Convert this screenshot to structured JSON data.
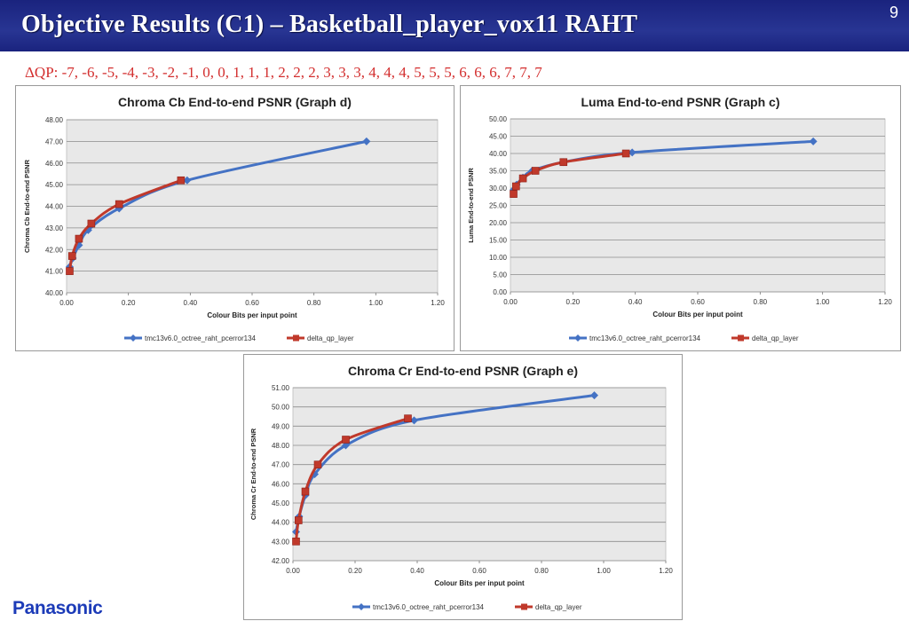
{
  "slide": {
    "title": "Objective Results (C1) – Basketball_player_vox11 RAHT",
    "page_number": "9",
    "dqp": "ΔQP: -7, -6, -5, -4, -3, -2, -1, 0, 0, 1, 1, 1, 2, 2, 2, 3, 3, 3, 4, 4, 4, 5, 5, 5, 6, 6, 6, 7, 7, 7",
    "logo": "Panasonic"
  },
  "colors": {
    "title_bar": "#1a237e",
    "series_1": "#4472c4",
    "series_2": "#c0392b",
    "dqp_text": "#d32f2f",
    "plot_bg": "#e8e8e8"
  },
  "chart_data": [
    {
      "type": "line",
      "title": "Chroma Cb End-to-end PSNR (Graph d)",
      "xlabel": "Colour  Bits per input point",
      "ylabel": "Chroma Cb End-to-end PSNR",
      "xlim": [
        0,
        1.2
      ],
      "ylim": [
        40,
        48
      ],
      "xticks": [
        "0.00",
        "0.20",
        "0.40",
        "0.60",
        "0.80",
        "1.00",
        "1.20"
      ],
      "yticks": [
        "40.00",
        "41.00",
        "42.00",
        "43.00",
        "44.00",
        "45.00",
        "46.00",
        "47.00",
        "48.00"
      ],
      "grid": true,
      "legend": "bottom",
      "series": [
        {
          "name": "tmc13v6.0_octree_raht_pcerror134",
          "marker": "diamond",
          "x": [
            0.01,
            0.02,
            0.04,
            0.07,
            0.17,
            0.39,
            0.97
          ],
          "y": [
            41.2,
            41.6,
            42.2,
            42.9,
            43.9,
            45.2,
            47.0
          ]
        },
        {
          "name": "delta_qp_layer",
          "marker": "square",
          "x": [
            0.01,
            0.018,
            0.04,
            0.08,
            0.17,
            0.37
          ],
          "y": [
            41.0,
            41.7,
            42.5,
            43.2,
            44.1,
            45.2
          ]
        }
      ]
    },
    {
      "type": "line",
      "title": "Luma End-to-end PSNR (Graph c)",
      "xlabel": "Colour  Bits per input point",
      "ylabel": "Luma End-to-end PSNR",
      "xlim": [
        0,
        1.2
      ],
      "ylim": [
        0,
        50
      ],
      "xticks": [
        "0.00",
        "0.20",
        "0.40",
        "0.60",
        "0.80",
        "1.00",
        "1.20"
      ],
      "yticks": [
        "0.00",
        "5.00",
        "10.00",
        "15.00",
        "20.00",
        "25.00",
        "30.00",
        "35.00",
        "40.00",
        "45.00",
        "50.00"
      ],
      "grid": true,
      "legend": "bottom",
      "series": [
        {
          "name": "tmc13v6.0_octree_raht_pcerror134",
          "marker": "diamond",
          "x": [
            0.01,
            0.02,
            0.04,
            0.07,
            0.17,
            0.39,
            0.97
          ],
          "y": [
            29.5,
            31.0,
            33.0,
            35.0,
            37.5,
            40.3,
            43.5
          ]
        },
        {
          "name": "delta_qp_layer",
          "marker": "square",
          "x": [
            0.01,
            0.018,
            0.04,
            0.08,
            0.17,
            0.37
          ],
          "y": [
            28.3,
            30.5,
            32.8,
            35.0,
            37.5,
            40.0
          ]
        }
      ]
    },
    {
      "type": "line",
      "title": "Chroma Cr End-to-end PSNR (Graph e)",
      "xlabel": "Colour  Bits per input point",
      "ylabel": "Chroma Cr End-to-end PSNR",
      "xlim": [
        0,
        1.2
      ],
      "ylim": [
        42,
        51
      ],
      "xticks": [
        "0.00",
        "0.20",
        "0.40",
        "0.60",
        "0.80",
        "1.00",
        "1.20"
      ],
      "yticks": [
        "42.00",
        "43.00",
        "44.00",
        "45.00",
        "46.00",
        "47.00",
        "48.00",
        "49.00",
        "50.00",
        "51.00"
      ],
      "grid": true,
      "legend": "bottom",
      "series": [
        {
          "name": "tmc13v6.0_octree_raht_pcerror134",
          "marker": "diamond",
          "x": [
            0.01,
            0.02,
            0.04,
            0.07,
            0.17,
            0.39,
            0.97
          ],
          "y": [
            43.5,
            44.3,
            45.4,
            46.5,
            48.0,
            49.3,
            50.6
          ]
        },
        {
          "name": "delta_qp_layer",
          "marker": "square",
          "x": [
            0.01,
            0.018,
            0.04,
            0.08,
            0.17,
            0.37
          ],
          "y": [
            43.0,
            44.1,
            45.6,
            47.0,
            48.3,
            49.4
          ]
        }
      ]
    }
  ]
}
